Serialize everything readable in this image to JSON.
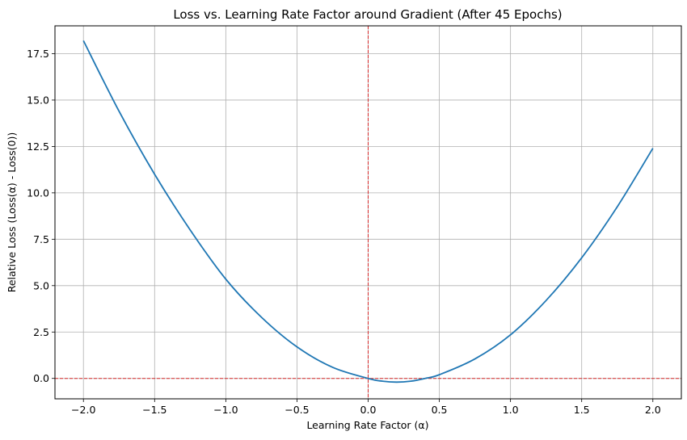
{
  "chart_data": {
    "type": "line",
    "title": "Loss vs. Learning Rate Factor around Gradient (After 45 Epochs)",
    "xlabel": "Learning Rate Factor (α)",
    "ylabel": "Relative Loss (Loss(α) - Loss(0))",
    "xlim": [
      -2.2,
      2.2
    ],
    "ylim": [
      -1.1,
      19.0
    ],
    "x_ticks": [
      -2.0,
      -1.5,
      -1.0,
      -0.5,
      0.0,
      0.5,
      1.0,
      1.5,
      2.0
    ],
    "x_tick_labels": [
      "−2.0",
      "−1.5",
      "−1.0",
      "−0.5",
      "0.0",
      "0.5",
      "1.0",
      "1.5",
      "2.0"
    ],
    "y_ticks": [
      0.0,
      2.5,
      5.0,
      7.5,
      10.0,
      12.5,
      15.0,
      17.5
    ],
    "y_tick_labels": [
      "0.0",
      "2.5",
      "5.0",
      "7.5",
      "10.0",
      "12.5",
      "15.0",
      "17.5"
    ],
    "grid": true,
    "reference_lines": [
      {
        "orientation": "vertical",
        "value": 0.0,
        "color": "#d62728",
        "style": "dashed"
      },
      {
        "orientation": "horizontal",
        "value": 0.0,
        "color": "#d62728",
        "style": "dashed"
      }
    ],
    "series": [
      {
        "color": "#1f77b4",
        "x": [
          -2.0,
          -1.75,
          -1.5,
          -1.25,
          -1.0,
          -0.75,
          -0.5,
          -0.25,
          0.0,
          0.1,
          0.2,
          0.3,
          0.4,
          0.5,
          0.75,
          1.0,
          1.25,
          1.5,
          1.75,
          2.0
        ],
        "y": [
          18.2,
          14.4,
          11.0,
          8.0,
          5.35,
          3.3,
          1.7,
          0.6,
          0.0,
          -0.15,
          -0.2,
          -0.15,
          0.0,
          0.2,
          1.05,
          2.35,
          4.2,
          6.5,
          9.25,
          12.4
        ]
      }
    ]
  }
}
